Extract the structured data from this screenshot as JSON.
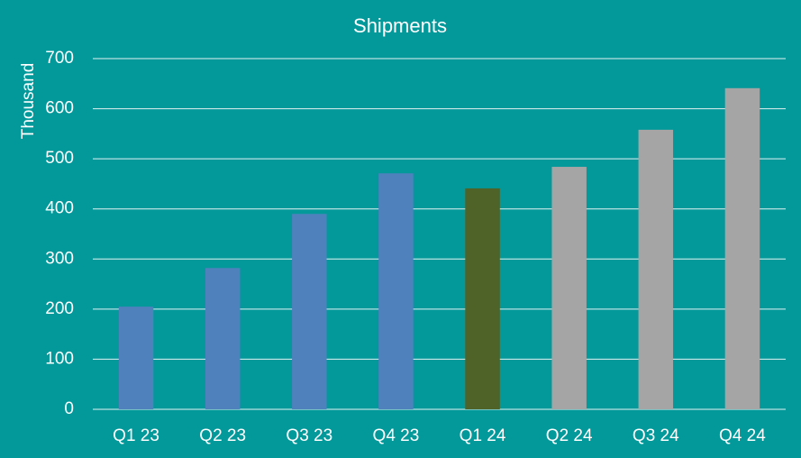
{
  "chart_data": {
    "type": "bar",
    "title": "Shipments",
    "y_label": "Thousand",
    "categories": [
      "Q1 23",
      "Q2 23",
      "Q3 23",
      "Q4 23",
      "Q1 24",
      "Q2 24",
      "Q3 24",
      "Q4 24"
    ],
    "values": [
      205,
      282,
      390,
      471,
      441,
      484,
      558,
      641
    ],
    "colors": [
      "#4f81bd",
      "#4f81bd",
      "#4f81bd",
      "#4f81bd",
      "#4f6228",
      "#a5a5a5",
      "#a5a5a5",
      "#a5a5a5"
    ],
    "ylim": [
      0,
      700
    ],
    "yticks": [
      0,
      100,
      200,
      300,
      400,
      500,
      600,
      700
    ],
    "grid": true
  }
}
